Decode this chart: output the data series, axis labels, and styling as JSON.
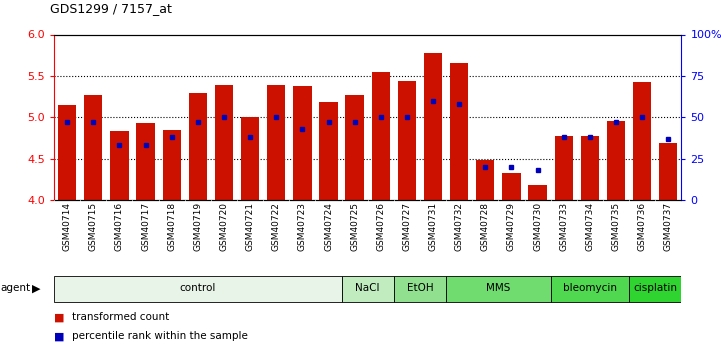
{
  "title": "GDS1299 / 7157_at",
  "samples": [
    "GSM40714",
    "GSM40715",
    "GSM40716",
    "GSM40717",
    "GSM40718",
    "GSM40719",
    "GSM40720",
    "GSM40721",
    "GSM40722",
    "GSM40723",
    "GSM40724",
    "GSM40725",
    "GSM40726",
    "GSM40727",
    "GSM40731",
    "GSM40732",
    "GSM40728",
    "GSM40729",
    "GSM40730",
    "GSM40733",
    "GSM40734",
    "GSM40735",
    "GSM40736",
    "GSM40737"
  ],
  "transformed_count": [
    5.15,
    5.27,
    4.83,
    4.93,
    4.85,
    5.29,
    5.39,
    5.0,
    5.39,
    5.38,
    5.18,
    5.27,
    5.55,
    5.44,
    5.78,
    5.65,
    4.49,
    4.33,
    4.18,
    4.77,
    4.77,
    4.95,
    5.43,
    4.69
  ],
  "percentile": [
    47,
    47,
    33,
    33,
    38,
    47,
    50,
    38,
    50,
    43,
    47,
    47,
    50,
    50,
    60,
    58,
    20,
    20,
    18,
    38,
    38,
    47,
    50,
    37
  ],
  "agents": [
    {
      "label": "control",
      "start": 0,
      "end": 11,
      "color": "#e8f4e8"
    },
    {
      "label": "NaCl",
      "start": 11,
      "end": 13,
      "color": "#c0ecc0"
    },
    {
      "label": "EtOH",
      "start": 13,
      "end": 15,
      "color": "#90e090"
    },
    {
      "label": "MMS",
      "start": 15,
      "end": 19,
      "color": "#70dc70"
    },
    {
      "label": "bleomycin",
      "start": 19,
      "end": 22,
      "color": "#50d850"
    },
    {
      "label": "cisplatin",
      "start": 22,
      "end": 24,
      "color": "#30d430"
    }
  ],
  "ylim_left": [
    4.0,
    6.0
  ],
  "ylim_right": [
    0,
    100
  ],
  "yticks_left": [
    4.0,
    4.5,
    5.0,
    5.5,
    6.0
  ],
  "yticks_right": [
    0,
    25,
    50,
    75,
    100
  ],
  "ytick_right_labels": [
    "0",
    "25",
    "50",
    "75",
    "100%"
  ],
  "bar_color": "#cc1100",
  "dot_color": "#0000bb",
  "tick_bg_color": "#cccccc",
  "grid_lines": [
    4.5,
    5.0,
    5.5
  ]
}
